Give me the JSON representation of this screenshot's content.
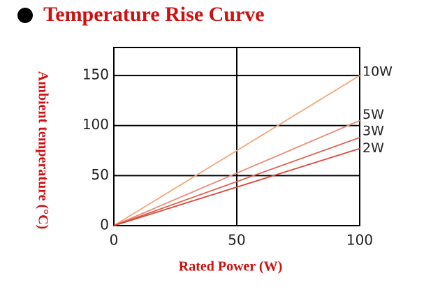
{
  "chart_data": {
    "type": "line",
    "title": "Temperature Rise Curve",
    "x_label": "Rated Power (W)",
    "y_label": "Ambient temperature (°C)",
    "x": [
      0,
      100
    ],
    "series": [
      {
        "name": "10W",
        "color": "#f2a878",
        "values": [
          0,
          150
        ]
      },
      {
        "name": "5W",
        "color": "#eb8c7c",
        "values": [
          0,
          105
        ]
      },
      {
        "name": "3W",
        "color": "#e2604e",
        "values": [
          0,
          88
        ]
      },
      {
        "name": "2W",
        "color": "#d9473a",
        "values": [
          0,
          77
        ]
      }
    ],
    "xlim": [
      0,
      100
    ],
    "xticks": [
      0,
      50,
      100
    ],
    "ylim": [
      0,
      178
    ],
    "yticks": [
      0,
      50,
      100,
      150
    ],
    "grid": true
  }
}
